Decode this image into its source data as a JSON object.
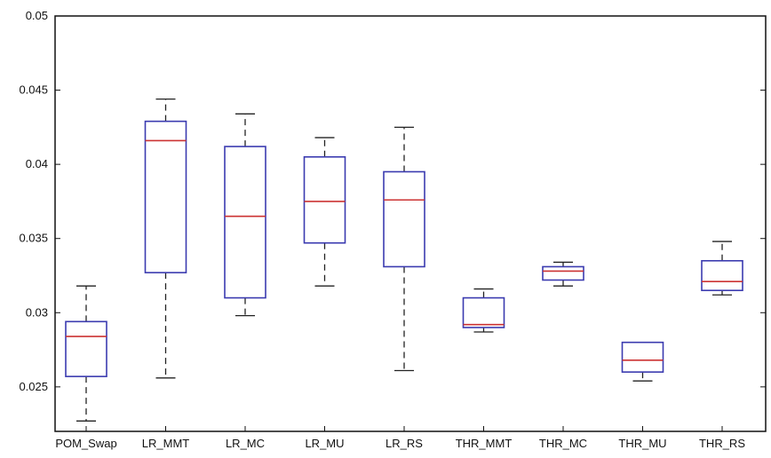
{
  "chart_data": {
    "type": "boxplot",
    "title": "",
    "xlabel": "",
    "ylabel": "",
    "ylim": [
      0.022,
      0.05
    ],
    "yticks": [
      0.025,
      0.03,
      0.035,
      0.04,
      0.045,
      0.05
    ],
    "ytick_labels": [
      "0.025",
      "0.03",
      "0.035",
      "0.04",
      "0.045",
      "0.05"
    ],
    "categories": [
      "POM_Swap",
      "LR_MMT",
      "LR_MC",
      "LR_MU",
      "LR_RS",
      "THR_MMT",
      "THR_MC",
      "THR_MU",
      "THR_RS"
    ],
    "boxes": [
      {
        "whisker_low": 0.0227,
        "q1": 0.0257,
        "median": 0.0284,
        "q3": 0.0294,
        "whisker_high": 0.0318
      },
      {
        "whisker_low": 0.0256,
        "q1": 0.0327,
        "median": 0.0416,
        "q3": 0.0429,
        "whisker_high": 0.0444
      },
      {
        "whisker_low": 0.0298,
        "q1": 0.031,
        "median": 0.0365,
        "q3": 0.0412,
        "whisker_high": 0.0434
      },
      {
        "whisker_low": 0.0318,
        "q1": 0.0347,
        "median": 0.0375,
        "q3": 0.0405,
        "whisker_high": 0.0418
      },
      {
        "whisker_low": 0.0261,
        "q1": 0.0331,
        "median": 0.0376,
        "q3": 0.0395,
        "whisker_high": 0.0425
      },
      {
        "whisker_low": 0.0287,
        "q1": 0.029,
        "median": 0.0292,
        "q3": 0.031,
        "whisker_high": 0.0316
      },
      {
        "whisker_low": 0.0318,
        "q1": 0.0322,
        "median": 0.0328,
        "q3": 0.0331,
        "whisker_high": 0.0334
      },
      {
        "whisker_low": 0.0254,
        "q1": 0.026,
        "median": 0.0268,
        "q3": 0.028,
        "whisker_high": 0.028
      },
      {
        "whisker_low": 0.0312,
        "q1": 0.0315,
        "median": 0.0321,
        "q3": 0.0335,
        "whisker_high": 0.0348
      }
    ],
    "colors": {
      "box": "#3b3bb0",
      "median": "#cc3333",
      "whisker": "#222222",
      "axis": "#111111"
    },
    "grid": false,
    "legend": "none"
  }
}
